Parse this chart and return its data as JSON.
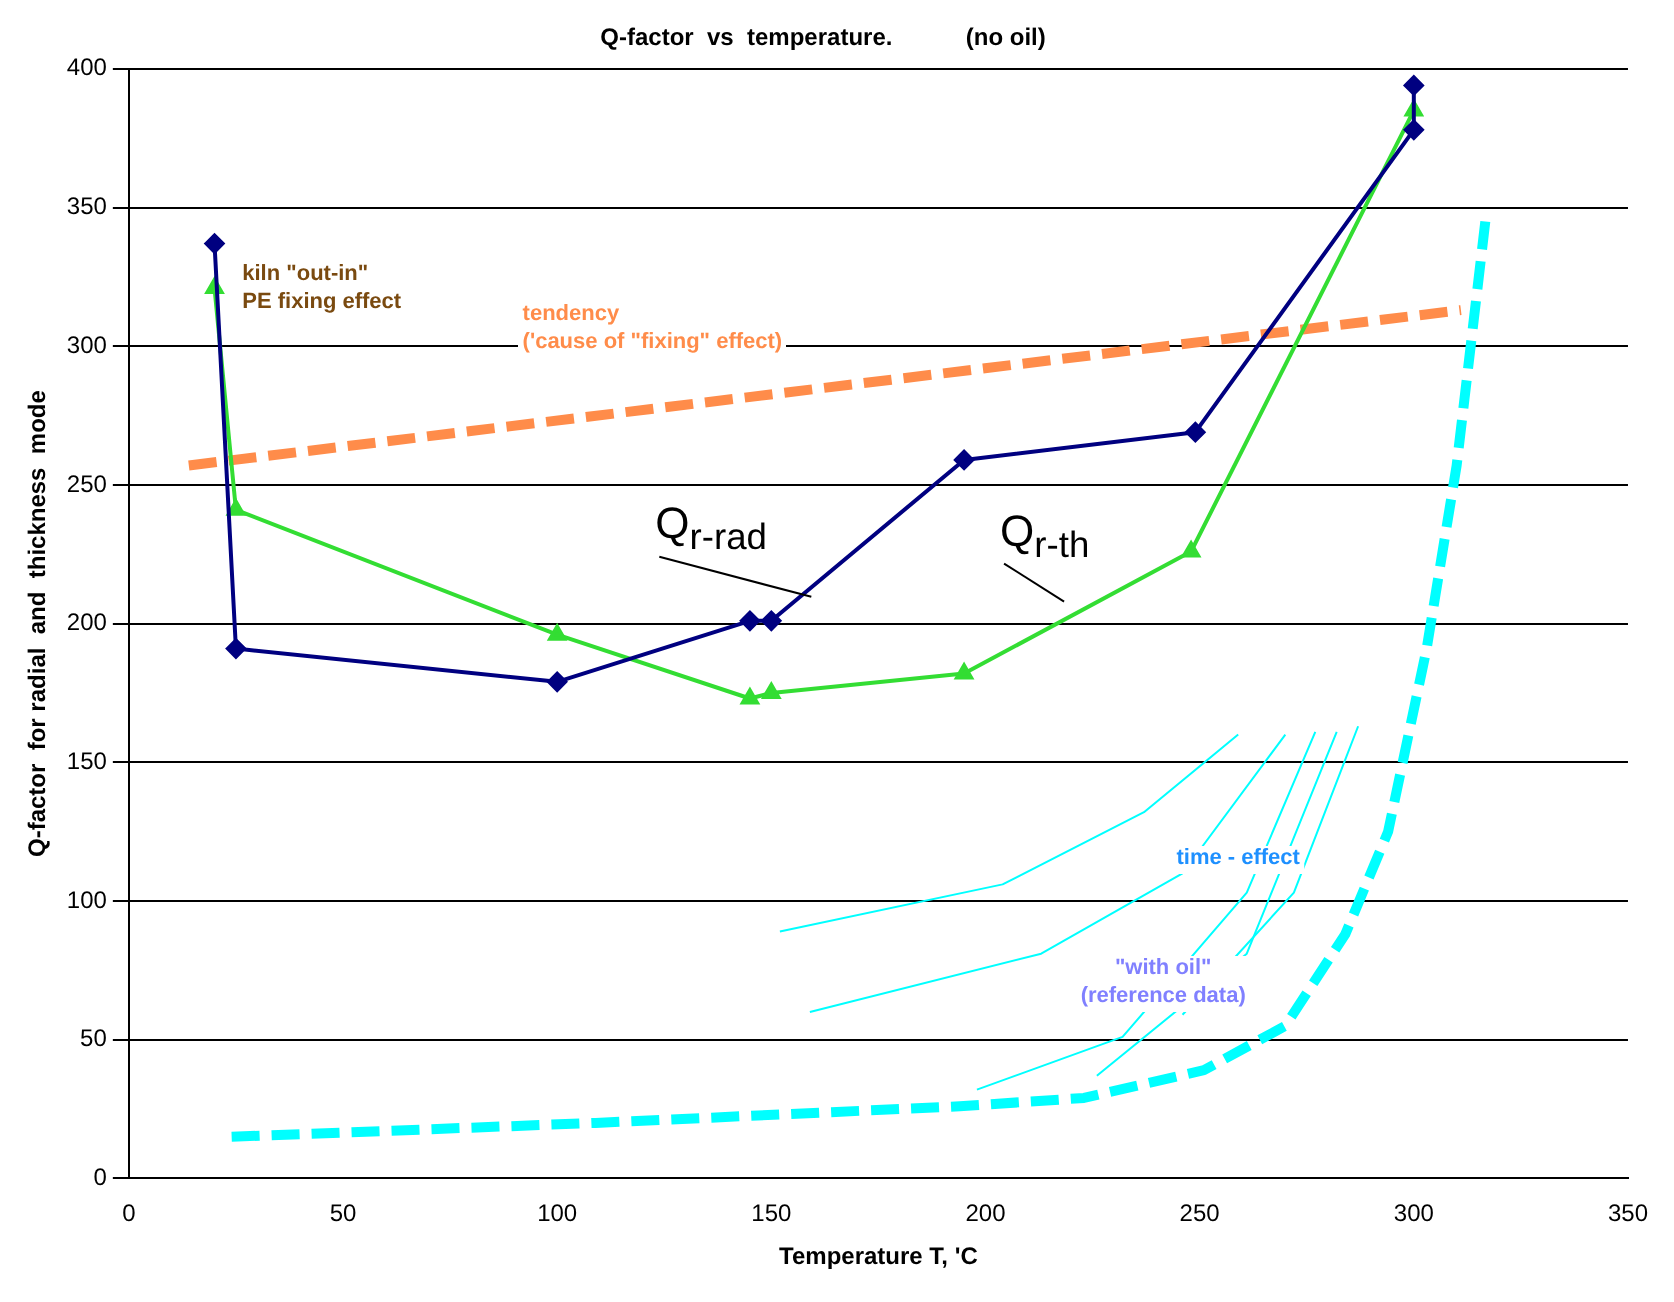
{
  "chart_data": {
    "type": "line",
    "title": "Q-factor  vs  temperature.           (no oil)",
    "xlabel": "Temperature T, 'C",
    "ylabel": "Q-factor  for radial  and  thickness  mode",
    "xlim": [
      0,
      350
    ],
    "xticks": [
      0,
      50,
      100,
      150,
      200,
      250,
      300,
      350
    ],
    "ylim": [
      0,
      400
    ],
    "yticks": [
      0,
      50,
      100,
      150,
      200,
      250,
      300,
      350,
      400
    ],
    "grid": "y",
    "legend": false,
    "series": [
      {
        "name": "Q$_{r-rad}$",
        "color": "#000080",
        "marker": "diamond",
        "line_style": "solid",
        "x": [
          20,
          25,
          100,
          145,
          150,
          195,
          249,
          300,
          300
        ],
        "values": [
          337,
          191,
          179,
          201,
          201,
          259,
          269,
          378,
          394
        ]
      },
      {
        "name": "Q$_{r-th}$",
        "color": "#33dd33",
        "marker": "triangle",
        "line_style": "solid",
        "x": [
          20,
          25,
          100,
          145,
          150,
          195,
          248,
          300
        ],
        "values": [
          321,
          241,
          196,
          173,
          175,
          182,
          226,
          385
        ]
      },
      {
        "color": "#ff8c4a",
        "marker": "none",
        "line_style": "dashed",
        "x": [
          14,
          311
        ],
        "values": [
          257,
          313
        ]
      },
      {
        "color": "#00ffff",
        "marker": "none",
        "line_style": "dashed",
        "x": [
          24,
          109,
          194,
          223,
          251,
          270,
          284,
          294,
          303,
          310,
          317
        ],
        "values": [
          15,
          20,
          26,
          29,
          39,
          55,
          88,
          125,
          191,
          257,
          349
        ]
      },
      {
        "color": "#00ffff",
        "marker": "none",
        "line_style": "solid",
        "x": [
          152,
          204,
          237,
          259
        ],
        "values": [
          89,
          106,
          132,
          160
        ]
      },
      {
        "color": "#00ffff",
        "marker": "none",
        "line_style": "solid",
        "x": [
          159,
          213,
          246,
          270
        ],
        "values": [
          60,
          81,
          110,
          160
        ]
      },
      {
        "color": "#00ffff",
        "marker": "none",
        "line_style": "solid",
        "x": [
          198,
          232,
          261,
          277
        ],
        "values": [
          32,
          51,
          103,
          161
        ]
      },
      {
        "color": "#00ffff",
        "marker": "none",
        "line_style": "solid",
        "x": [
          226,
          261,
          282
        ],
        "values": [
          37,
          81,
          161
        ]
      },
      {
        "color": "#00ffff",
        "marker": "none",
        "line_style": "solid",
        "x": [
          246,
          272,
          287
        ],
        "values": [
          59,
          103,
          163
        ]
      }
    ],
    "annotations": [
      "kiln \"out-in\"\nPE fixing effect",
      "tendency\n('cause of \"fixing\" effect)",
      "time - effect",
      "\"with oil\"\n(reference data)"
    ]
  }
}
